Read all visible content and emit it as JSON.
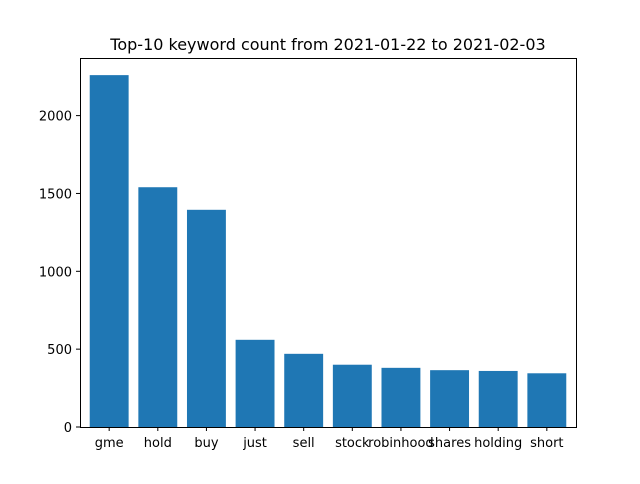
{
  "chart_data": {
    "type": "bar",
    "title": "Top-10 keyword count from 2021-01-22 to 2021-02-03",
    "xlabel": "",
    "ylabel": "",
    "categories": [
      "gme",
      "hold",
      "buy",
      "just",
      "sell",
      "stock",
      "robinhood",
      "shares",
      "holding",
      "short"
    ],
    "values": [
      2260,
      1540,
      1395,
      560,
      470,
      400,
      380,
      365,
      360,
      345
    ],
    "ylim": [
      0,
      2370
    ],
    "yticks": [
      0,
      500,
      1000,
      1500,
      2000
    ],
    "ytick_labels": [
      "0",
      "500",
      "1000",
      "1500",
      "2000"
    ],
    "bar_color": "#1f77b4",
    "grid": false,
    "legend": "none"
  }
}
